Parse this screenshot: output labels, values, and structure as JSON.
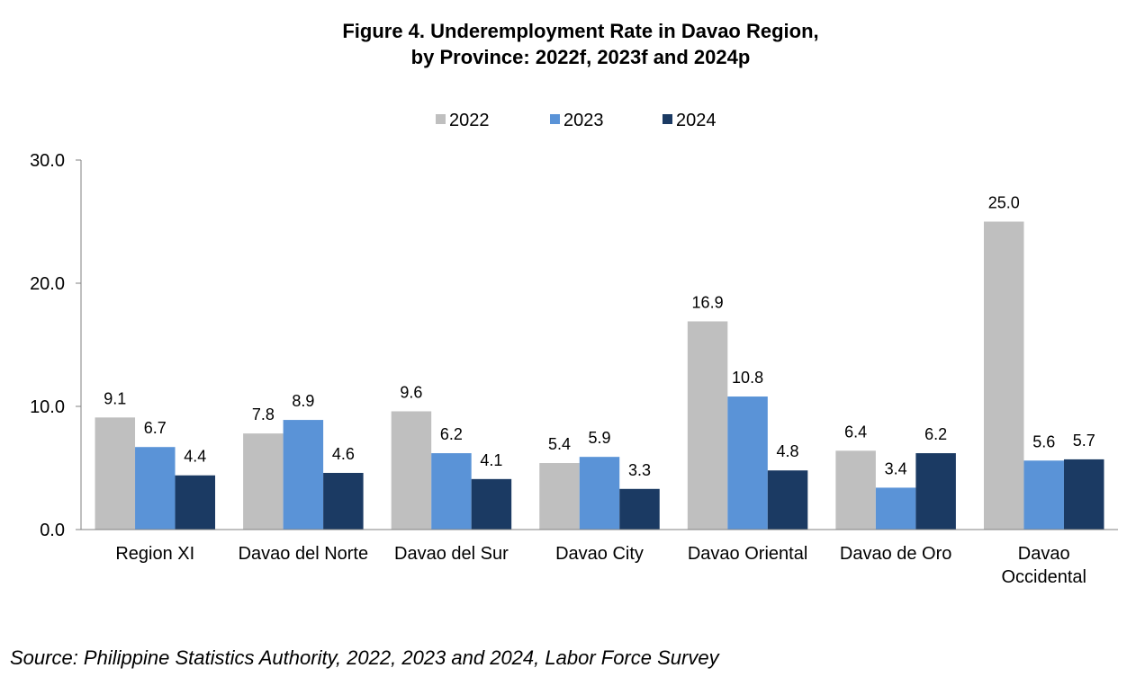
{
  "title_line1": "Figure 4. Underemployment Rate in Davao Region,",
  "title_line2": "by Province: 2022f, 2023f and 2024p",
  "source": "Source: Philippine Statistics Authority, 2022, 2023 and 2024, Labor Force Survey",
  "chart_data": {
    "type": "bar",
    "title": "Figure 4. Underemployment Rate in Davao Region, by Province: 2022f, 2023f and 2024p",
    "xlabel": "",
    "ylabel": "",
    "ylim": [
      0,
      30
    ],
    "yticks": [
      "0.0",
      "10.0",
      "20.0",
      "30.0"
    ],
    "grid": false,
    "legend_position": "top",
    "categories": [
      "Region XI",
      "Davao del Norte",
      "Davao del Sur",
      "Davao City",
      "Davao Oriental",
      "Davao de Oro",
      "Davao Occidental"
    ],
    "series": [
      {
        "name": "2022",
        "color": "#bfbfbf",
        "values": [
          9.1,
          7.8,
          9.6,
          5.4,
          16.9,
          6.4,
          25.0
        ],
        "labels": [
          "9.1",
          "7.8",
          "9.6",
          "5.4",
          "16.9",
          "6.4",
          "25.0"
        ]
      },
      {
        "name": "2023",
        "color": "#5a93d7",
        "values": [
          6.7,
          8.9,
          6.2,
          5.9,
          10.8,
          3.4,
          5.6
        ],
        "labels": [
          "6.7",
          "8.9",
          "6.2",
          "5.9",
          "10.8",
          "3.4",
          "5.6"
        ]
      },
      {
        "name": "2024",
        "color": "#1b3a63",
        "values": [
          4.4,
          4.6,
          4.1,
          3.3,
          4.8,
          6.2,
          5.7
        ],
        "labels": [
          "4.4",
          "4.6",
          "4.1",
          "3.3",
          "4.8",
          "6.2",
          "5.7"
        ]
      }
    ]
  }
}
